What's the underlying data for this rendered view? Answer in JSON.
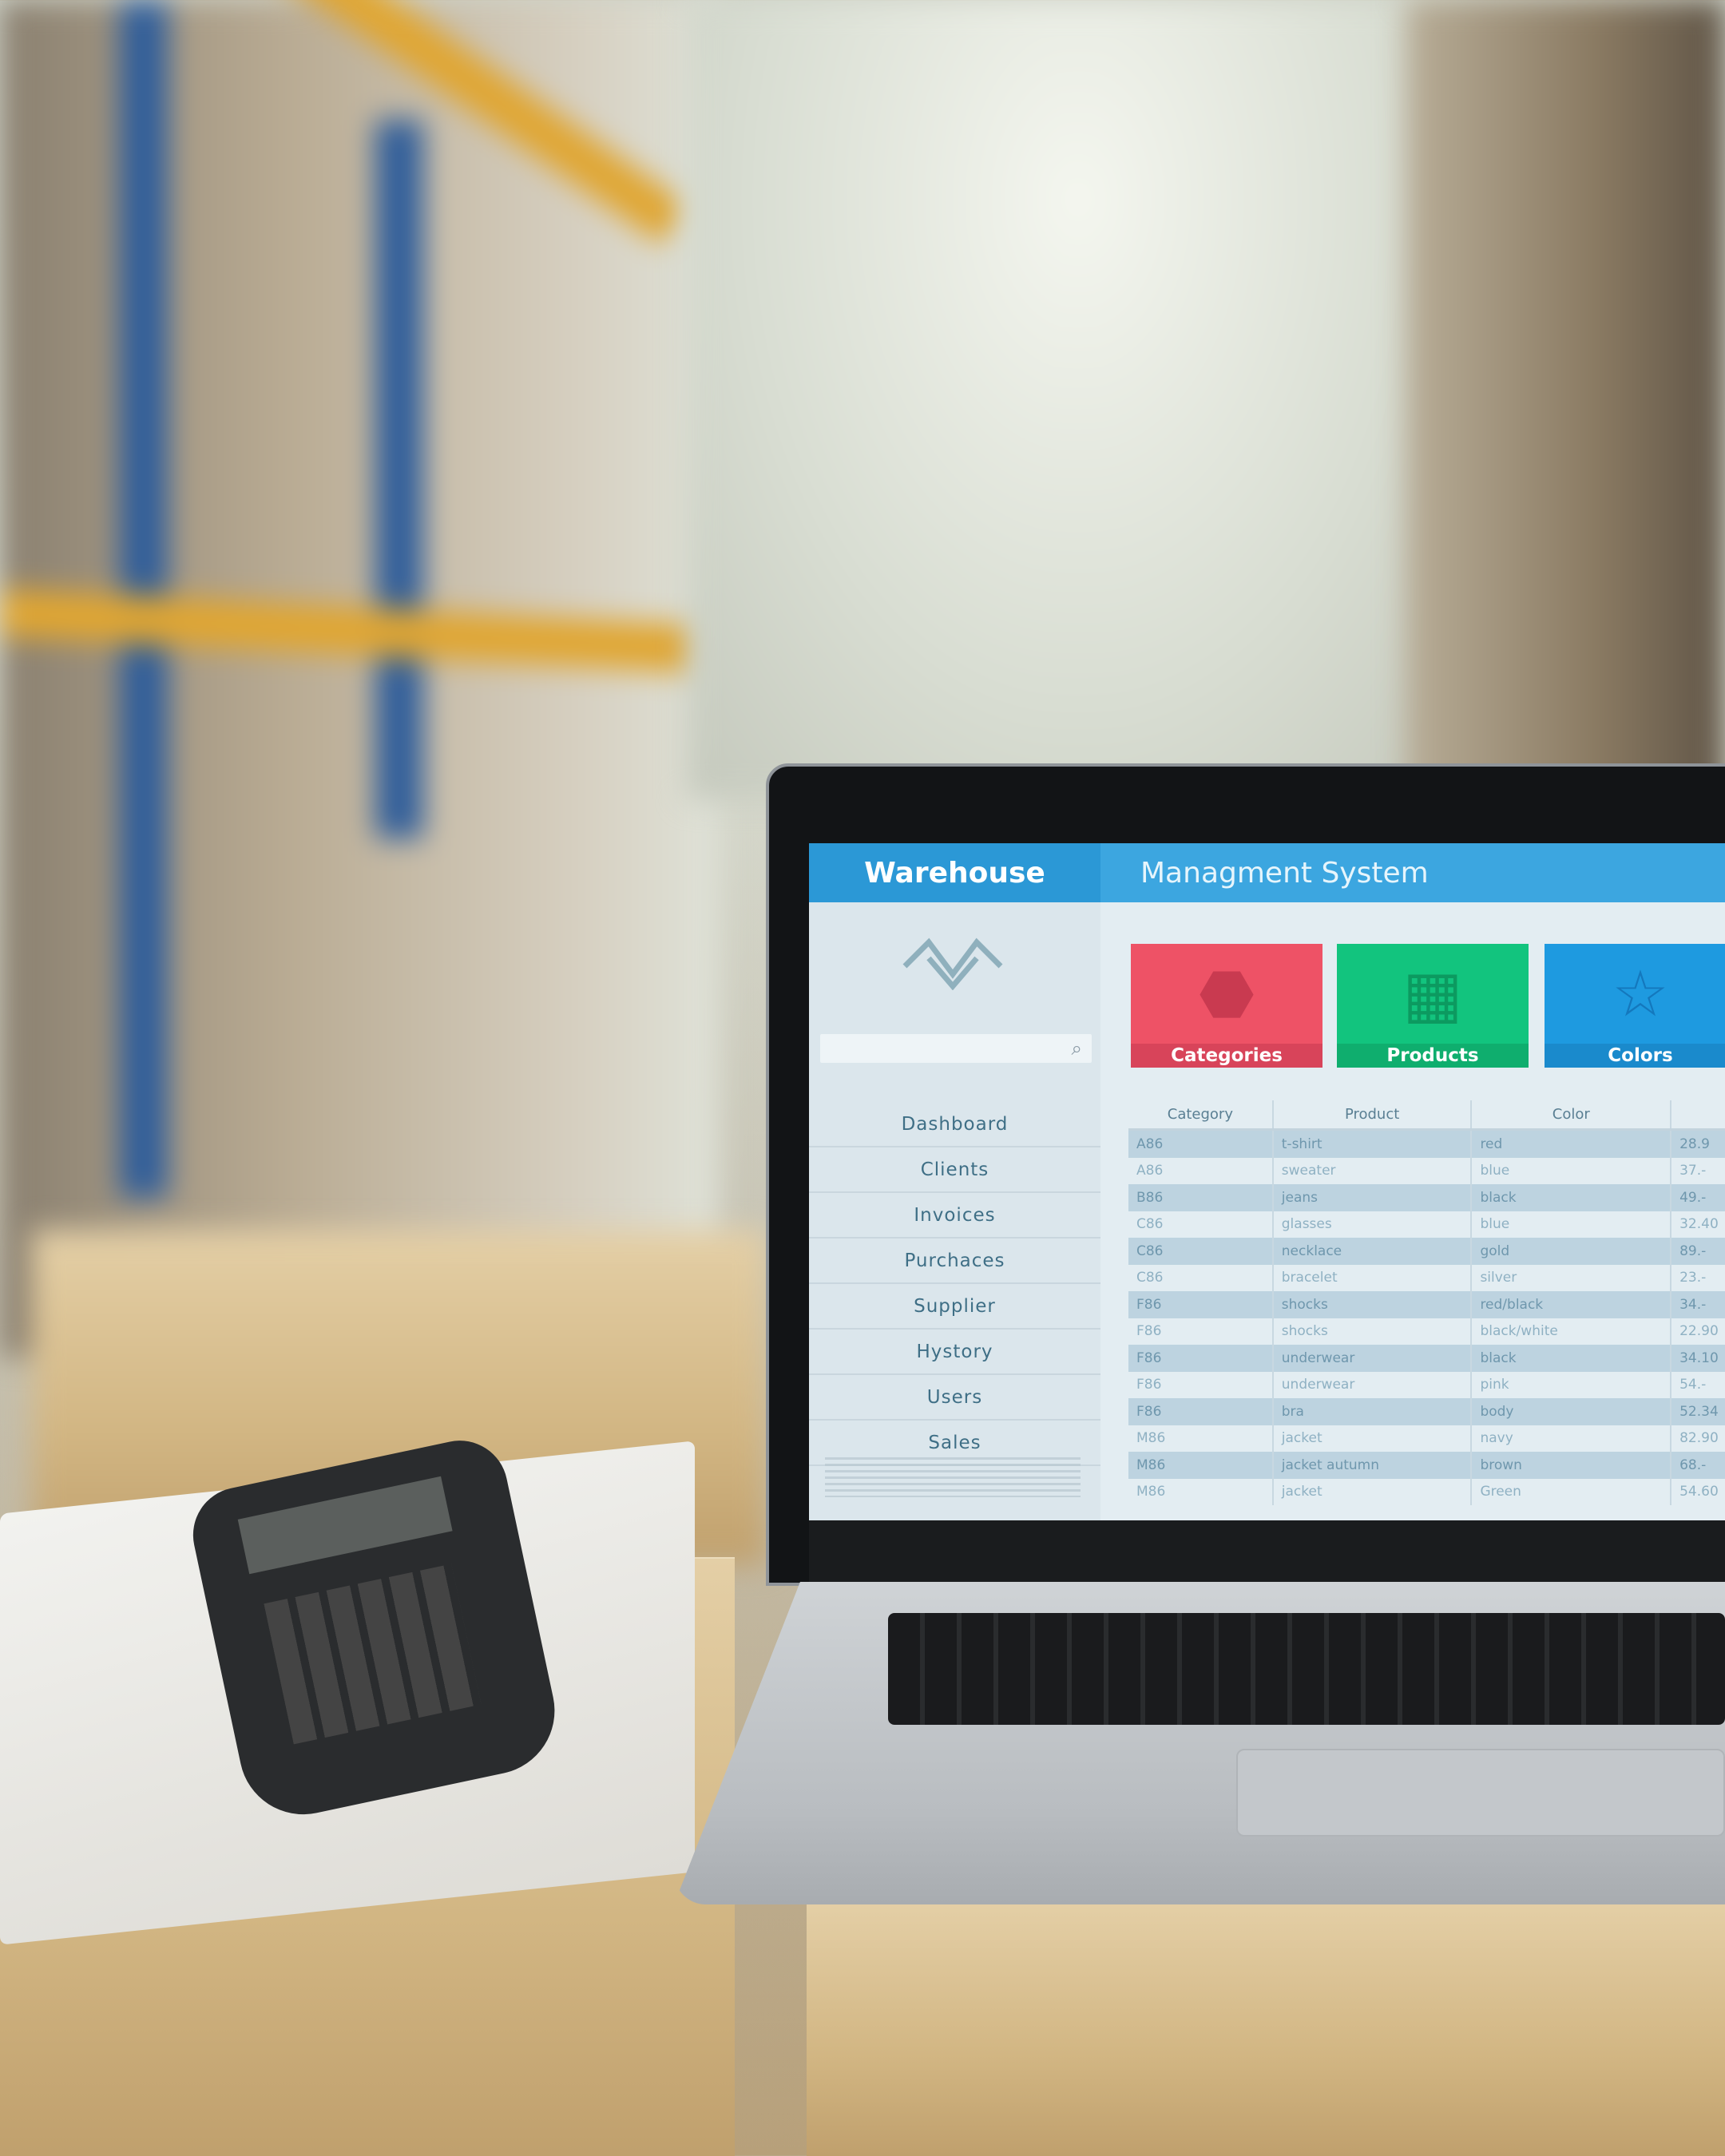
{
  "app": {
    "title_left": "Warehouse",
    "title_right": "Managment System"
  },
  "sidebar": {
    "search": {
      "placeholder": "",
      "icon": "search-icon"
    },
    "items": [
      {
        "label": "Dashboard"
      },
      {
        "label": "Clients"
      },
      {
        "label": "Invoices"
      },
      {
        "label": "Purchaces"
      },
      {
        "label": "Supplier"
      },
      {
        "label": "Hystory"
      },
      {
        "label": "Users"
      },
      {
        "label": "Sales"
      }
    ]
  },
  "tiles": [
    {
      "label": "Categories",
      "icon": "tag-icon",
      "color": "#ee5266"
    },
    {
      "label": "Products",
      "icon": "grid-icon",
      "color": "#12c47e"
    },
    {
      "label": "Colors",
      "icon": "star-icon",
      "color": "#1e9ae0"
    }
  ],
  "table": {
    "headers": [
      "Category",
      "Product",
      "Color",
      ""
    ],
    "rows": [
      [
        "A86",
        "t-shirt",
        "red",
        "28.9"
      ],
      [
        "A86",
        "sweater",
        "blue",
        "37.-"
      ],
      [
        "B86",
        "jeans",
        "black",
        "49.-"
      ],
      [
        "C86",
        "glasses",
        "blue",
        "32.40"
      ],
      [
        "C86",
        "necklace",
        "gold",
        "89.-"
      ],
      [
        "C86",
        "bracelet",
        "silver",
        "23.-"
      ],
      [
        "F86",
        "shocks",
        "red/black",
        "34.-"
      ],
      [
        "F86",
        "shocks",
        "black/white",
        "22.90"
      ],
      [
        "F86",
        "underwear",
        "black",
        "34.10"
      ],
      [
        "F86",
        "underwear",
        "pink",
        "54.-"
      ],
      [
        "F86",
        "bra",
        "body",
        "52.34"
      ],
      [
        "M86",
        "jacket",
        "navy",
        "82.90"
      ],
      [
        "M86",
        "jacket autumn",
        "brown",
        "68.-"
      ],
      [
        "M86",
        "jacket",
        "Green",
        "54.60"
      ]
    ]
  },
  "colors": {
    "header": "#2b98d6",
    "nav_text": "#3f6f86"
  }
}
